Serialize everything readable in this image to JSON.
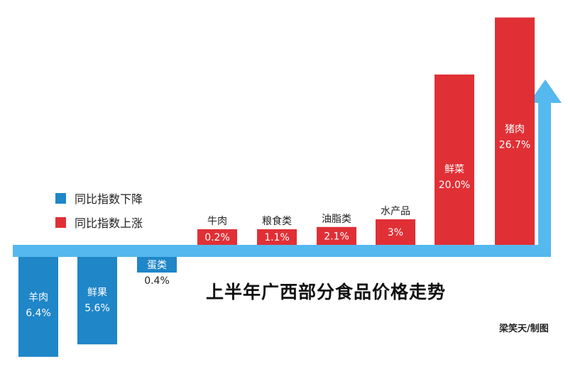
{
  "title": "上半年广西部分食品价格走势",
  "credit": "梁笑天/制图",
  "legend": {
    "down": "同比指数下降",
    "up": "同比指数上涨"
  },
  "colors": {
    "up": "#e03036",
    "down": "#1f86c8",
    "axis": "#55b8ee",
    "text_on_bar": "#ffffff",
    "text_dark": "#222222"
  },
  "chart_data": {
    "type": "bar",
    "categories": [
      "羊肉",
      "鲜果",
      "蛋类",
      "牛肉",
      "粮食类",
      "油脂类",
      "水产品",
      "鲜菜",
      "猪肉"
    ],
    "values": [
      -6.4,
      -5.6,
      -0.4,
      0.2,
      1.1,
      2.1,
      3,
      20.0,
      26.7
    ],
    "value_labels": [
      "6.4%",
      "5.6%",
      "0.4%",
      "0.2%",
      "1.1%",
      "2.1%",
      "3%",
      "20.0%",
      "26.7%"
    ],
    "title": "上半年广西部分食品价格走势",
    "xlabel": "",
    "ylabel": "",
    "legend_position": "left"
  }
}
